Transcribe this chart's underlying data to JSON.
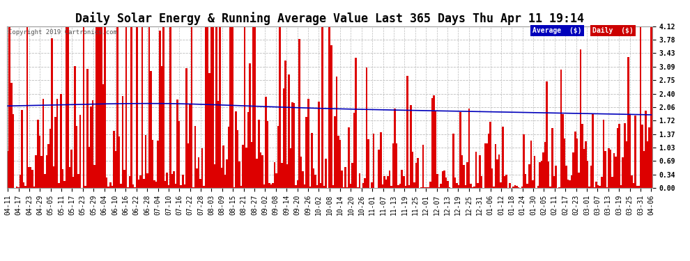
{
  "title": "Daily Solar Energy & Running Average Value Last 365 Days Thu Apr 11 19:14",
  "copyright": "Copyright 2019 Cartronics.com",
  "legend_labels": [
    "Average  ($)",
    "Daily  ($)"
  ],
  "legend_colors": [
    "#0000bb",
    "#cc0000"
  ],
  "bar_color": "#dd0000",
  "line_color": "#0000bb",
  "background_color": "#ffffff",
  "plot_bg_color": "#ffffff",
  "grid_color": "#bbbbbb",
  "ylim": [
    0.0,
    4.12
  ],
  "yticks": [
    0.0,
    0.34,
    0.69,
    1.03,
    1.37,
    1.72,
    2.06,
    2.4,
    2.75,
    3.09,
    3.43,
    3.78,
    4.12
  ],
  "title_fontsize": 12,
  "tick_fontsize": 7,
  "n_bars": 365,
  "xtick_labels": [
    "04-11",
    "04-17",
    "04-23",
    "04-29",
    "05-05",
    "05-11",
    "05-17",
    "05-23",
    "05-29",
    "06-04",
    "06-10",
    "06-16",
    "06-22",
    "06-28",
    "07-04",
    "07-10",
    "07-16",
    "07-22",
    "07-28",
    "08-03",
    "08-09",
    "08-15",
    "08-21",
    "08-27",
    "09-02",
    "09-08",
    "09-14",
    "09-20",
    "09-26",
    "10-02",
    "10-08",
    "10-14",
    "10-20",
    "10-26",
    "11-01",
    "11-07",
    "11-13",
    "11-19",
    "11-25",
    "12-01",
    "12-07",
    "12-13",
    "12-19",
    "12-25",
    "12-31",
    "01-06",
    "01-12",
    "01-18",
    "01-24",
    "01-30",
    "02-05",
    "02-11",
    "02-17",
    "02-23",
    "03-01",
    "03-07",
    "03-13",
    "03-19",
    "03-25",
    "03-31",
    "04-06"
  ]
}
